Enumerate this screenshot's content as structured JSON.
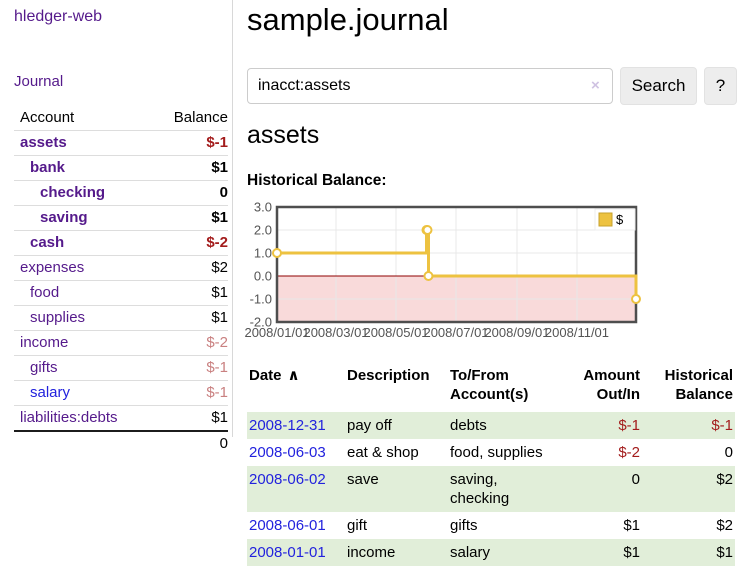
{
  "app": {
    "brand": "hledger-web"
  },
  "sidebar": {
    "journal_link": "Journal",
    "header": {
      "account": "Account",
      "balance": "Balance"
    },
    "accounts": [
      {
        "name": "assets",
        "balance": "$-1"
      },
      {
        "name": "bank",
        "balance": "$1"
      },
      {
        "name": "checking",
        "balance": "0"
      },
      {
        "name": "saving",
        "balance": "$1"
      },
      {
        "name": "cash",
        "balance": "$-2"
      },
      {
        "name": "expenses",
        "balance": "$2"
      },
      {
        "name": "food",
        "balance": "$1"
      },
      {
        "name": "supplies",
        "balance": "$1"
      },
      {
        "name": "income",
        "balance": "$-2"
      },
      {
        "name": "gifts",
        "balance": "$-1"
      },
      {
        "name": "salary",
        "balance": "$-1"
      },
      {
        "name": "liabilities:debts",
        "balance": "$1"
      }
    ],
    "total": "0"
  },
  "main": {
    "title": "sample.journal",
    "search": {
      "value": "inacct:assets",
      "clear_icon": "×",
      "search_button": "Search",
      "help_button": "?"
    },
    "account_heading": "assets",
    "chart_label": "Historical Balance:",
    "register": {
      "sort_icon": "∧",
      "headers": {
        "date": "Date",
        "description": "Description",
        "tofrom": "To/From\nAccount(s)",
        "amount": "Amount\nOut/In",
        "balance": "Historical\nBalance"
      },
      "rows": [
        {
          "date": "2008-12-31",
          "description": "pay off",
          "tofrom": "debts",
          "amount": "$-1",
          "balance": "$-1"
        },
        {
          "date": "2008-06-03",
          "description": "eat & shop",
          "tofrom": "food, supplies",
          "amount": "$-2",
          "balance": "0"
        },
        {
          "date": "2008-06-02",
          "description": "save",
          "tofrom": "saving,\nchecking",
          "amount": "0",
          "balance": "$2"
        },
        {
          "date": "2008-06-01",
          "description": "gift",
          "tofrom": "gifts",
          "amount": "$1",
          "balance": "$2"
        },
        {
          "date": "2008-01-01",
          "description": "income",
          "tofrom": "salary",
          "amount": "$1",
          "balance": "$1"
        }
      ]
    }
  },
  "chart_data": {
    "type": "line",
    "step": true,
    "title": "Historical Balance:",
    "series": [
      {
        "name": "$",
        "color": "#EDC240",
        "points": [
          [
            "2008/01/01",
            1.0
          ],
          [
            "2008/06/01",
            2.0
          ],
          [
            "2008/06/02",
            2.0
          ],
          [
            "2008/06/03",
            0.0
          ],
          [
            "2008/12/31",
            -1.0
          ]
        ]
      }
    ],
    "xlim": [
      "2008/01/01",
      "2008/12/31"
    ],
    "ylim": [
      -2.0,
      3.0
    ],
    "yticks": [
      3.0,
      2.0,
      1.0,
      0.0,
      -1.0,
      -2.0
    ],
    "xticks": [
      "2008/01/01",
      "2008/03/01",
      "2008/05/01",
      "2008/07/01",
      "2008/09/01",
      "2008/11/01"
    ],
    "legend_position": "top-right",
    "grid": true,
    "negative_region_fill": "#f9dada",
    "zero_line_color": "#8f0000",
    "grid_color": "#e8e8e8",
    "border_color": "#4e4e4e",
    "tick_color": "#545454"
  },
  "colors": {
    "link_purple": "#551a8b",
    "link_blue": "#2222dd",
    "negative_red": "#a31c1c",
    "negative_rose": "#c98080",
    "row_green": "#e1eed9",
    "series_gold": "#EDC240"
  }
}
